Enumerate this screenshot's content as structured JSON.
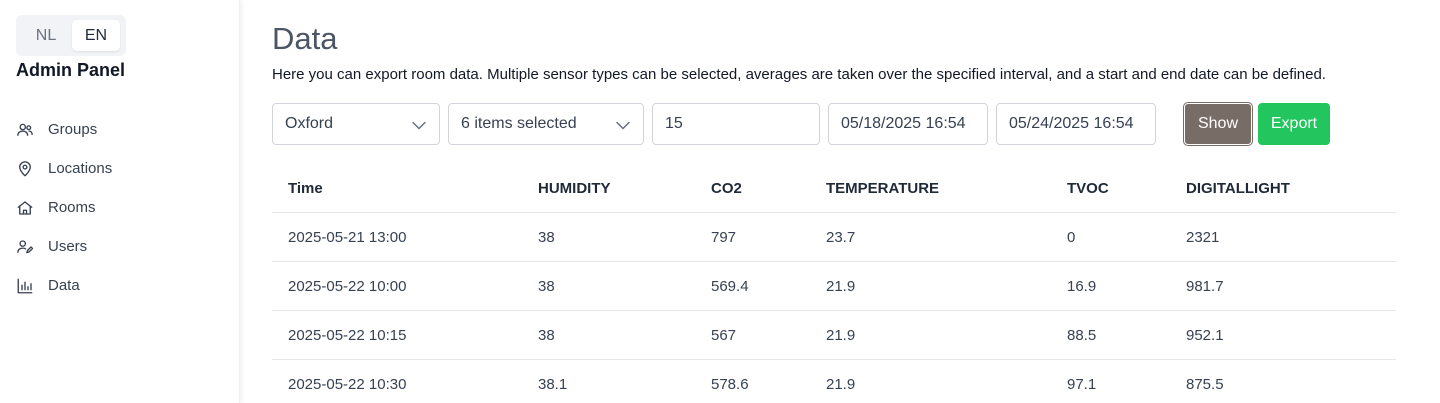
{
  "sidebar": {
    "languages": [
      "NL",
      "EN"
    ],
    "title": "Admin Panel",
    "items": [
      {
        "label": "Groups",
        "icon": "users-icon"
      },
      {
        "label": "Locations",
        "icon": "map-pin-icon"
      },
      {
        "label": "Rooms",
        "icon": "home-icon"
      },
      {
        "label": "Users",
        "icon": "user-edit-icon"
      },
      {
        "label": "Data",
        "icon": "bar-chart-icon"
      }
    ]
  },
  "main": {
    "title": "Data",
    "description": "Here you can export room data. Multiple sensor types can be selected, averages are taken over the specified interval, and a start and end date can be defined.",
    "controls": {
      "room": "Oxford",
      "sensors": "6 items selected",
      "interval": "15",
      "start": "05/18/2025 16:54",
      "end": "05/24/2025 16:54",
      "show_label": "Show",
      "export_label": "Export"
    },
    "table": {
      "headers": [
        "Time",
        "HUMIDITY",
        "CO2",
        "TEMPERATURE",
        "TVOC",
        "DIGITALLIGHT"
      ],
      "rows": [
        [
          "2025-05-21 13:00",
          "38",
          "797",
          "23.7",
          "0",
          "2321"
        ],
        [
          "2025-05-22 10:00",
          "38",
          "569.4",
          "21.9",
          "16.9",
          "981.7"
        ],
        [
          "2025-05-22 10:15",
          "38",
          "567",
          "21.9",
          "88.5",
          "952.1"
        ],
        [
          "2025-05-22 10:30",
          "38.1",
          "578.6",
          "21.9",
          "97.1",
          "875.5"
        ]
      ]
    }
  },
  "colors": {
    "show_button": "#786c66",
    "export_button": "#22c55e"
  }
}
